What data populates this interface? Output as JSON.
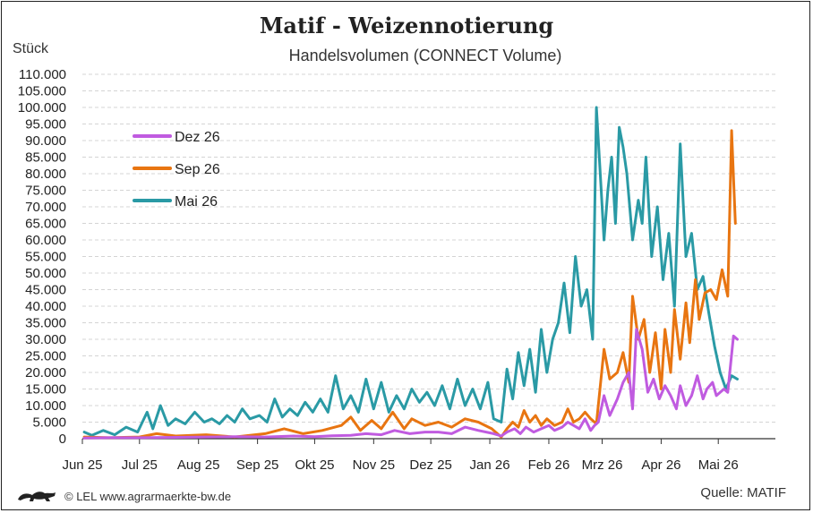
{
  "header": {
    "title": "Matif - Weizennotierung",
    "subtitle": "Handelsvolumen (CONNECT Volume)",
    "unit": "Stück"
  },
  "footer": {
    "copyright": "© LEL www.agrarmaerkte-bw.de",
    "source": "Quelle: MATIF",
    "logo_icon": "lion-logo-icon"
  },
  "chart_data": {
    "type": "line",
    "title": "Matif - Weizennotierung",
    "subtitle": "Handelsvolumen (CONNECT Volume)",
    "ylabel": "Stück",
    "ylim": [
      0,
      110000
    ],
    "yticks": [
      0,
      5000,
      10000,
      15000,
      20000,
      25000,
      30000,
      35000,
      40000,
      45000,
      50000,
      55000,
      60000,
      65000,
      70000,
      75000,
      80000,
      85000,
      90000,
      95000,
      100000,
      105000,
      110000
    ],
    "ytick_labels": [
      "0",
      "5.000",
      "10.000",
      "15.000",
      "20.000",
      "25.000",
      "30.000",
      "35.000",
      "40.000",
      "45.000",
      "50.000",
      "55.000",
      "60.000",
      "65.000",
      "70.000",
      "75.000",
      "80.000",
      "85.000",
      "90.000",
      "95.000",
      "100.000",
      "105.000",
      "110.000"
    ],
    "xlim": [
      "2025-06-01",
      "2026-05-31"
    ],
    "xticks": [
      "2025-06-01",
      "2025-07-01",
      "2025-08-01",
      "2025-09-01",
      "2025-10-01",
      "2025-11-01",
      "2025-12-01",
      "2026-01-01",
      "2026-02-01",
      "2026-03-01",
      "2026-04-01",
      "2026-05-01"
    ],
    "xtick_labels": [
      "Jun 25",
      "Jul 25",
      "Aug 25",
      "Sep 25",
      "Okt 25",
      "Nov 25",
      "Dez 25",
      "Jan 26",
      "Feb 26",
      "Mrz 26",
      "Apr 26",
      "Mai 26"
    ],
    "grid": true,
    "legend": "top-left",
    "series": [
      {
        "name": "Dez 26",
        "color": "#c05be0",
        "points": [
          [
            "2025-06-02",
            200
          ],
          [
            "2025-06-15",
            300
          ],
          [
            "2025-07-01",
            300
          ],
          [
            "2025-07-20",
            400
          ],
          [
            "2025-08-05",
            500
          ],
          [
            "2025-08-20",
            600
          ],
          [
            "2025-09-05",
            500
          ],
          [
            "2025-09-20",
            800
          ],
          [
            "2025-10-01",
            600
          ],
          [
            "2025-10-10",
            900
          ],
          [
            "2025-10-20",
            1000
          ],
          [
            "2025-10-28",
            1500
          ],
          [
            "2025-11-05",
            1200
          ],
          [
            "2025-11-12",
            2500
          ],
          [
            "2025-11-20",
            1500
          ],
          [
            "2025-11-28",
            2000
          ],
          [
            "2025-12-05",
            2000
          ],
          [
            "2025-12-12",
            1500
          ],
          [
            "2025-12-19",
            3500
          ],
          [
            "2025-12-26",
            2500
          ],
          [
            "2026-01-03",
            1500
          ],
          [
            "2026-01-07",
            800
          ],
          [
            "2026-01-10",
            2000
          ],
          [
            "2026-01-14",
            3000
          ],
          [
            "2026-01-17",
            1500
          ],
          [
            "2026-01-20",
            3500
          ],
          [
            "2026-01-24",
            2000
          ],
          [
            "2026-01-28",
            3000
          ],
          [
            "2026-02-01",
            4000
          ],
          [
            "2026-02-04",
            2500
          ],
          [
            "2026-02-08",
            3500
          ],
          [
            "2026-02-11",
            5000
          ],
          [
            "2026-02-14",
            4000
          ],
          [
            "2026-02-17",
            3000
          ],
          [
            "2026-02-20",
            6000
          ],
          [
            "2026-02-23",
            2500
          ],
          [
            "2026-02-25",
            4000
          ],
          [
            "2026-02-27",
            5000
          ],
          [
            "2026-03-02",
            13000
          ],
          [
            "2026-03-05",
            7000
          ],
          [
            "2026-03-09",
            12000
          ],
          [
            "2026-03-12",
            17000
          ],
          [
            "2026-03-15",
            20000
          ],
          [
            "2026-03-17",
            9000
          ],
          [
            "2026-03-19",
            33000
          ],
          [
            "2026-03-22",
            27000
          ],
          [
            "2026-03-25",
            14000
          ],
          [
            "2026-03-28",
            18000
          ],
          [
            "2026-03-31",
            12000
          ],
          [
            "2026-04-03",
            16000
          ],
          [
            "2026-04-06",
            13000
          ],
          [
            "2026-04-09",
            9000
          ],
          [
            "2026-04-11",
            16000
          ],
          [
            "2026-04-14",
            10000
          ],
          [
            "2026-04-17",
            13000
          ],
          [
            "2026-04-20",
            19000
          ],
          [
            "2026-04-23",
            12000
          ],
          [
            "2026-04-25",
            15000
          ],
          [
            "2026-04-28",
            17000
          ],
          [
            "2026-04-30",
            13000
          ],
          [
            "2026-05-04",
            15000
          ],
          [
            "2026-05-06",
            14000
          ],
          [
            "2026-05-09",
            31000
          ],
          [
            "2026-05-11",
            30000
          ]
        ]
      },
      {
        "name": "Sep 26",
        "color": "#e87511",
        "points": [
          [
            "2025-06-02",
            500
          ],
          [
            "2025-06-15",
            300
          ],
          [
            "2025-07-01",
            500
          ],
          [
            "2025-07-10",
            1500
          ],
          [
            "2025-07-20",
            800
          ],
          [
            "2025-08-05",
            1200
          ],
          [
            "2025-08-20",
            500
          ],
          [
            "2025-09-05",
            1500
          ],
          [
            "2025-09-15",
            3000
          ],
          [
            "2025-09-25",
            1500
          ],
          [
            "2025-10-05",
            2500
          ],
          [
            "2025-10-15",
            4000
          ],
          [
            "2025-10-20",
            6500
          ],
          [
            "2025-10-25",
            2500
          ],
          [
            "2025-10-31",
            5500
          ],
          [
            "2025-11-05",
            3000
          ],
          [
            "2025-11-11",
            8000
          ],
          [
            "2025-11-17",
            3000
          ],
          [
            "2025-11-21",
            6000
          ],
          [
            "2025-11-28",
            4000
          ],
          [
            "2025-12-05",
            5000
          ],
          [
            "2025-12-12",
            3500
          ],
          [
            "2025-12-19",
            6000
          ],
          [
            "2025-12-26",
            5000
          ],
          [
            "2026-01-02",
            3000
          ],
          [
            "2026-01-07",
            500
          ],
          [
            "2026-01-10",
            3000
          ],
          [
            "2026-01-13",
            5000
          ],
          [
            "2026-01-16",
            3500
          ],
          [
            "2026-01-19",
            8500
          ],
          [
            "2026-01-22",
            5000
          ],
          [
            "2026-01-25",
            7000
          ],
          [
            "2026-01-28",
            4000
          ],
          [
            "2026-01-31",
            6000
          ],
          [
            "2026-02-04",
            4000
          ],
          [
            "2026-02-08",
            5000
          ],
          [
            "2026-02-11",
            9000
          ],
          [
            "2026-02-14",
            5000
          ],
          [
            "2026-02-17",
            6000
          ],
          [
            "2026-02-20",
            8000
          ],
          [
            "2026-02-23",
            6000
          ],
          [
            "2026-02-26",
            4500
          ],
          [
            "2026-03-02",
            27000
          ],
          [
            "2026-03-05",
            18000
          ],
          [
            "2026-03-09",
            20000
          ],
          [
            "2026-03-12",
            26000
          ],
          [
            "2026-03-15",
            17000
          ],
          [
            "2026-03-17",
            43000
          ],
          [
            "2026-03-20",
            30000
          ],
          [
            "2026-03-23",
            36000
          ],
          [
            "2026-03-26",
            20000
          ],
          [
            "2026-03-29",
            32000
          ],
          [
            "2026-04-01",
            15000
          ],
          [
            "2026-04-03",
            33000
          ],
          [
            "2026-04-06",
            20000
          ],
          [
            "2026-04-08",
            39000
          ],
          [
            "2026-04-11",
            24000
          ],
          [
            "2026-04-14",
            41000
          ],
          [
            "2026-04-16",
            29000
          ],
          [
            "2026-04-19",
            48000
          ],
          [
            "2026-04-21",
            36000
          ],
          [
            "2026-04-24",
            44000
          ],
          [
            "2026-04-27",
            45000
          ],
          [
            "2026-04-30",
            42000
          ],
          [
            "2026-05-03",
            51000
          ],
          [
            "2026-05-06",
            43000
          ],
          [
            "2026-05-08",
            93000
          ],
          [
            "2026-05-10",
            65000
          ]
        ]
      },
      {
        "name": "Mai 26",
        "color": "#2a9aa5",
        "points": [
          [
            "2025-06-02",
            2000
          ],
          [
            "2025-06-06",
            1000
          ],
          [
            "2025-06-12",
            2500
          ],
          [
            "2025-06-18",
            1200
          ],
          [
            "2025-06-24",
            3500
          ],
          [
            "2025-06-30",
            2000
          ],
          [
            "2025-07-05",
            8000
          ],
          [
            "2025-07-08",
            3000
          ],
          [
            "2025-07-12",
            10000
          ],
          [
            "2025-07-16",
            4000
          ],
          [
            "2025-07-20",
            6000
          ],
          [
            "2025-07-25",
            4500
          ],
          [
            "2025-07-30",
            8000
          ],
          [
            "2025-08-04",
            5000
          ],
          [
            "2025-08-08",
            6000
          ],
          [
            "2025-08-12",
            4500
          ],
          [
            "2025-08-16",
            7000
          ],
          [
            "2025-08-20",
            5000
          ],
          [
            "2025-08-24",
            9000
          ],
          [
            "2025-08-28",
            6000
          ],
          [
            "2025-09-02",
            7000
          ],
          [
            "2025-09-06",
            5000
          ],
          [
            "2025-09-10",
            12000
          ],
          [
            "2025-09-14",
            6500
          ],
          [
            "2025-09-18",
            9000
          ],
          [
            "2025-09-22",
            7000
          ],
          [
            "2025-09-26",
            11000
          ],
          [
            "2025-09-30",
            8000
          ],
          [
            "2025-10-04",
            12000
          ],
          [
            "2025-10-08",
            8000
          ],
          [
            "2025-10-12",
            19000
          ],
          [
            "2025-10-16",
            9000
          ],
          [
            "2025-10-20",
            13000
          ],
          [
            "2025-10-24",
            8000
          ],
          [
            "2025-10-28",
            18000
          ],
          [
            "2025-11-01",
            9000
          ],
          [
            "2025-11-05",
            17000
          ],
          [
            "2025-11-09",
            8000
          ],
          [
            "2025-11-13",
            13000
          ],
          [
            "2025-11-17",
            9000
          ],
          [
            "2025-11-21",
            15000
          ],
          [
            "2025-11-25",
            11000
          ],
          [
            "2025-11-29",
            14000
          ],
          [
            "2025-12-03",
            10000
          ],
          [
            "2025-12-07",
            16000
          ],
          [
            "2025-12-11",
            9000
          ],
          [
            "2025-12-15",
            18000
          ],
          [
            "2025-12-19",
            10000
          ],
          [
            "2025-12-23",
            15000
          ],
          [
            "2025-12-27",
            9000
          ],
          [
            "2025-12-31",
            17000
          ],
          [
            "2026-01-03",
            6000
          ],
          [
            "2026-01-07",
            5000
          ],
          [
            "2026-01-10",
            21000
          ],
          [
            "2026-01-13",
            12000
          ],
          [
            "2026-01-16",
            26000
          ],
          [
            "2026-01-19",
            16000
          ],
          [
            "2026-01-22",
            27000
          ],
          [
            "2026-01-25",
            14000
          ],
          [
            "2026-01-28",
            33000
          ],
          [
            "2026-01-31",
            20000
          ],
          [
            "2026-02-03",
            30000
          ],
          [
            "2026-02-06",
            35000
          ],
          [
            "2026-02-09",
            47000
          ],
          [
            "2026-02-12",
            32000
          ],
          [
            "2026-02-15",
            55000
          ],
          [
            "2026-02-18",
            40000
          ],
          [
            "2026-02-21",
            45000
          ],
          [
            "2026-02-24",
            30000
          ],
          [
            "2026-02-26",
            100000
          ],
          [
            "2026-02-28",
            80000
          ],
          [
            "2026-03-02",
            60000
          ],
          [
            "2026-03-04",
            75000
          ],
          [
            "2026-03-06",
            85000
          ],
          [
            "2026-03-08",
            65000
          ],
          [
            "2026-03-10",
            94000
          ],
          [
            "2026-03-12",
            88000
          ],
          [
            "2026-03-14",
            80000
          ],
          [
            "2026-03-17",
            60000
          ],
          [
            "2026-03-20",
            72000
          ],
          [
            "2026-03-22",
            65000
          ],
          [
            "2026-03-24",
            85000
          ],
          [
            "2026-03-27",
            55000
          ],
          [
            "2026-03-30",
            70000
          ],
          [
            "2026-04-02",
            48000
          ],
          [
            "2026-04-05",
            62000
          ],
          [
            "2026-04-08",
            40000
          ],
          [
            "2026-04-11",
            89000
          ],
          [
            "2026-04-14",
            55000
          ],
          [
            "2026-04-17",
            62000
          ],
          [
            "2026-04-20",
            45000
          ],
          [
            "2026-04-23",
            49000
          ],
          [
            "2026-04-26",
            38000
          ],
          [
            "2026-04-29",
            28000
          ],
          [
            "2026-05-02",
            20000
          ],
          [
            "2026-05-05",
            15000
          ],
          [
            "2026-05-08",
            19000
          ],
          [
            "2026-05-11",
            18000
          ]
        ]
      }
    ]
  }
}
